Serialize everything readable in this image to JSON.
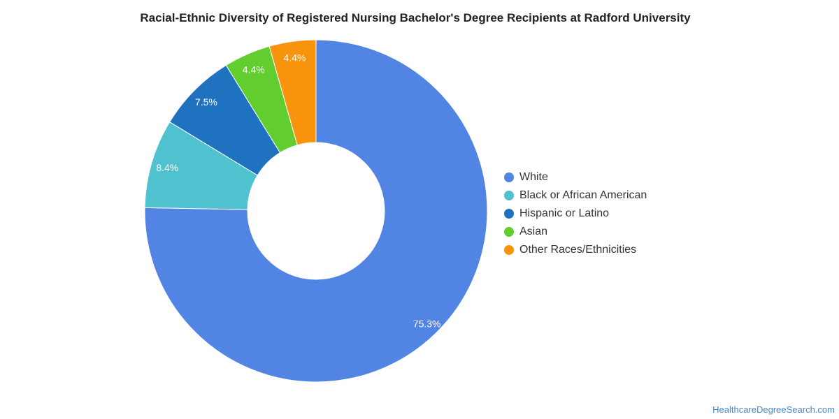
{
  "chart_data": {
    "type": "pie",
    "title": "Racial-Ethnic Diversity of Registered Nursing Bachelor's Degree Recipients at Radford University",
    "donut": true,
    "legend_position": "right",
    "slices": [
      {
        "name": "White",
        "value": 75.3,
        "label": "75.3%",
        "color": "#5285e3"
      },
      {
        "name": "Black or African American",
        "value": 8.4,
        "label": "8.4%",
        "color": "#50c1cf"
      },
      {
        "name": "Hispanic or Latino",
        "value": 7.5,
        "label": "7.5%",
        "color": "#1f72bf"
      },
      {
        "name": "Asian",
        "value": 4.4,
        "label": "4.4%",
        "color": "#62cd2e"
      },
      {
        "name": "Other Races/Ethnicities",
        "value": 4.4,
        "label": "4.4%",
        "color": "#f7940c"
      }
    ]
  },
  "watermark": "HealthcareDegreeSearch.com"
}
